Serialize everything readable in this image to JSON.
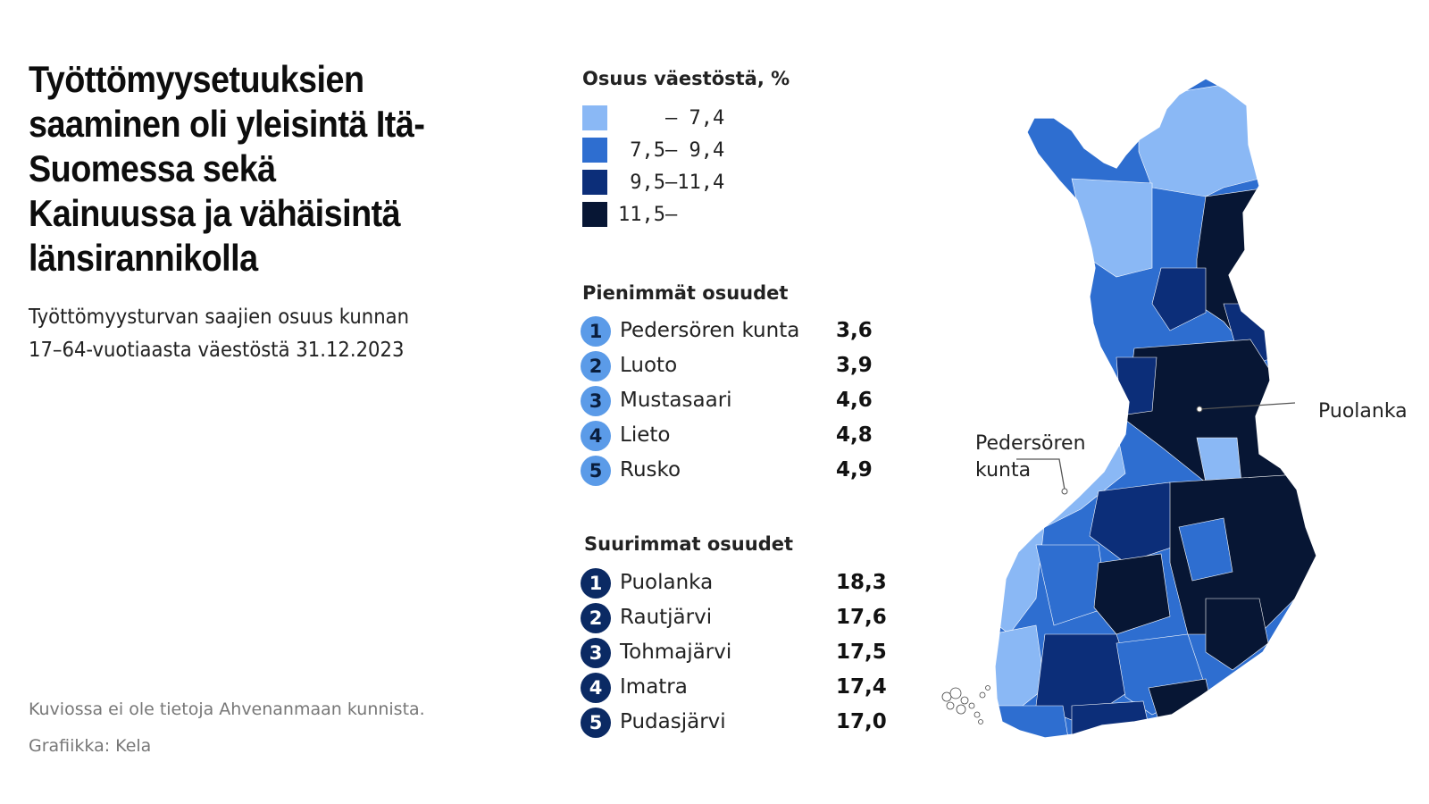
{
  "title": "Työttömyysetuuksien saaminen oli yleisintä Itä-Suomessa sekä Kainuussa ja vähäisintä länsirannikolla",
  "subtitle": "Työttömyysturvan saajien osuus kunnan 17–64-vuotiaasta väestöstä 31.12.2023",
  "footnote": "Kuviossa ei ole tietoja Ahvenanmaan kunnista.",
  "credit": "Grafiikka: Kela",
  "legend": {
    "title": "Osuus väestöstä, %",
    "classes": [
      {
        "label": "    – 7,4",
        "color": "#8ab8f5"
      },
      {
        "label": " 7,5– 9,4",
        "color": "#2e6ed0"
      },
      {
        "label": " 9,5–11,4",
        "color": "#0c2e79"
      },
      {
        "label": "11,5–",
        "color": "#071634"
      }
    ]
  },
  "smallest": {
    "title": "Pienimmät osuudet",
    "items": [
      {
        "rank": "1",
        "name": "Pedersören kunta",
        "value": "3,6"
      },
      {
        "rank": "2",
        "name": "Luoto",
        "value": "3,9"
      },
      {
        "rank": "3",
        "name": "Mustasaari",
        "value": "4,6"
      },
      {
        "rank": "4",
        "name": "Lieto",
        "value": "4,8"
      },
      {
        "rank": "5",
        "name": "Rusko",
        "value": "4,9"
      }
    ]
  },
  "largest": {
    "title": "Suurimmat osuudet",
    "items": [
      {
        "rank": "1",
        "name": "Puolanka",
        "value": "18,3"
      },
      {
        "rank": "2",
        "name": "Rautjärvi",
        "value": "17,6"
      },
      {
        "rank": "3",
        "name": "Tohmajärvi",
        "value": "17,5"
      },
      {
        "rank": "4",
        "name": "Imatra",
        "value": "17,4"
      },
      {
        "rank": "5",
        "name": "Pudasjärvi",
        "value": "17,0"
      }
    ]
  },
  "map_labels": {
    "puolanka": "Puolanka",
    "pedersoren_line1": "Pedersören",
    "pedersoren_line2": "kunta"
  }
}
